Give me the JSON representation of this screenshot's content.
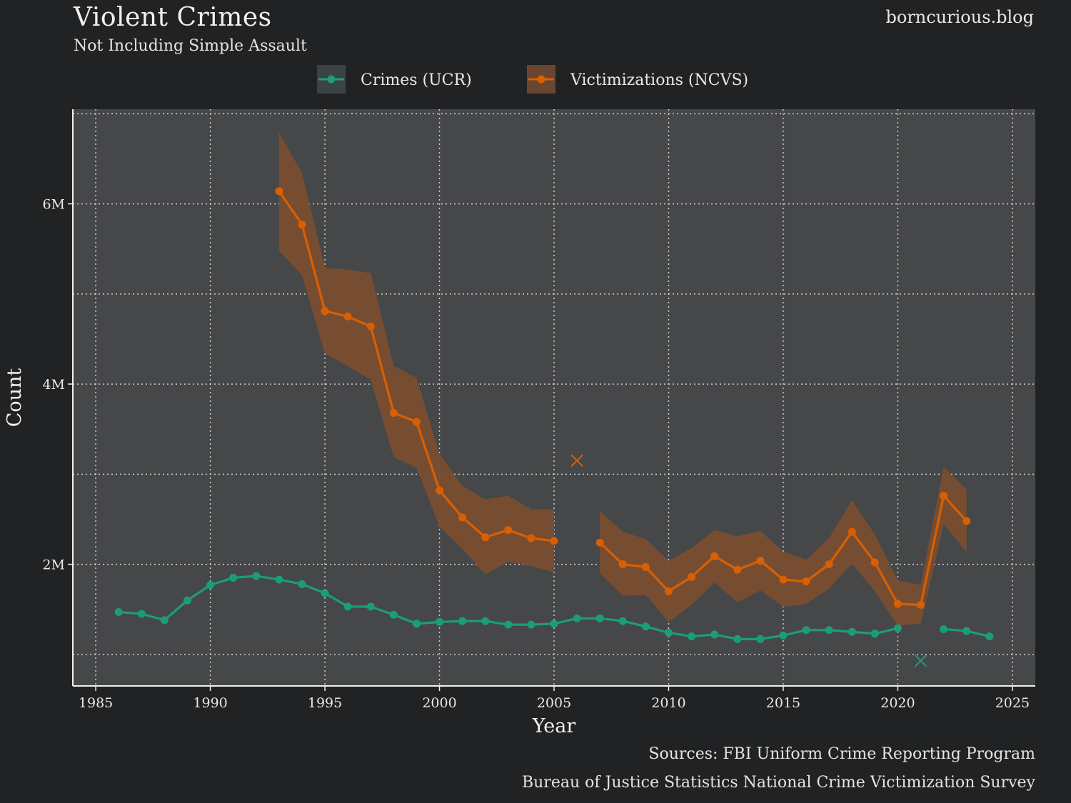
{
  "header": {
    "title": "Violent Crimes",
    "subtitle": "Not Including Simple Assault",
    "site": "borncurious.blog"
  },
  "footer": {
    "source_line1": "Sources: FBI Uniform Crime Reporting Program",
    "source_line2": "Bureau of Justice Statistics National Crime Victimization Survey"
  },
  "colors": {
    "background": "#212224",
    "panel": "#464749",
    "ucr": "#1b9e77",
    "ncvs": "#d95f02",
    "ncvs_band": "#7a4e32"
  },
  "chart_data": {
    "type": "line",
    "xlabel": "Year",
    "ylabel": "Count",
    "xlim": [
      1984,
      2026
    ],
    "ylim": [
      650000,
      7050000
    ],
    "x_ticks": [
      1985,
      1990,
      1995,
      2000,
      2005,
      2010,
      2015,
      2020,
      2025
    ],
    "y_ticks": [
      2000000,
      4000000,
      6000000
    ],
    "y_tick_labels": [
      "2M",
      "4M",
      "6M"
    ],
    "y_minor_grid": [
      1000000,
      3000000,
      5000000,
      7000000
    ],
    "grid": true,
    "legend_position": "top",
    "series": [
      {
        "name": "Crimes (UCR)",
        "color": "#1b9e77",
        "points": [
          [
            1986,
            1470000
          ],
          [
            1987,
            1450000
          ],
          [
            1988,
            1380000
          ],
          [
            1989,
            1600000
          ],
          [
            1990,
            1770000
          ],
          [
            1991,
            1850000
          ],
          [
            1992,
            1870000
          ],
          [
            1993,
            1830000
          ],
          [
            1994,
            1780000
          ],
          [
            1995,
            1680000
          ],
          [
            1996,
            1530000
          ],
          [
            1997,
            1530000
          ],
          [
            1998,
            1440000
          ],
          [
            1999,
            1340000
          ],
          [
            2000,
            1360000
          ],
          [
            2001,
            1370000
          ],
          [
            2002,
            1370000
          ],
          [
            2003,
            1330000
          ],
          [
            2004,
            1330000
          ],
          [
            2005,
            1340000
          ],
          [
            2006,
            1400000
          ],
          [
            2007,
            1400000
          ],
          [
            2008,
            1370000
          ],
          [
            2009,
            1310000
          ],
          [
            2010,
            1240000
          ],
          [
            2011,
            1200000
          ],
          [
            2012,
            1220000
          ],
          [
            2013,
            1170000
          ],
          [
            2014,
            1170000
          ],
          [
            2015,
            1210000
          ],
          [
            2016,
            1270000
          ],
          [
            2017,
            1270000
          ],
          [
            2018,
            1250000
          ],
          [
            2019,
            1230000
          ],
          [
            2020,
            1290000
          ],
          null,
          [
            2022,
            1280000
          ],
          [
            2023,
            1260000
          ],
          [
            2024,
            1200000
          ]
        ],
        "excluded_point": [
          2021,
          930000
        ]
      },
      {
        "name": "Victimizations (NCVS)",
        "color": "#d95f02",
        "points": [
          [
            1993,
            6140000
          ],
          [
            1994,
            5770000
          ],
          [
            1995,
            4810000
          ],
          [
            1996,
            4750000
          ],
          [
            1997,
            4640000
          ],
          [
            1998,
            3680000
          ],
          [
            1999,
            3580000
          ],
          [
            2000,
            2820000
          ],
          [
            2001,
            2520000
          ],
          [
            2002,
            2300000
          ],
          [
            2003,
            2380000
          ],
          [
            2004,
            2290000
          ],
          [
            2005,
            2260000
          ],
          null,
          [
            2007,
            2240000
          ],
          [
            2008,
            2000000
          ],
          [
            2009,
            1970000
          ],
          [
            2010,
            1700000
          ],
          [
            2011,
            1860000
          ],
          [
            2012,
            2090000
          ],
          [
            2013,
            1940000
          ],
          [
            2014,
            2040000
          ],
          [
            2015,
            1830000
          ],
          [
            2016,
            1810000
          ],
          [
            2017,
            2000000
          ],
          [
            2018,
            2360000
          ],
          [
            2019,
            2020000
          ],
          [
            2020,
            1560000
          ],
          [
            2021,
            1550000
          ],
          [
            2022,
            2760000
          ],
          [
            2023,
            2480000
          ]
        ],
        "excluded_point": [
          2006,
          3150000
        ],
        "confidence_band": [
          [
            1993,
            5480000,
            6790000
          ],
          [
            1994,
            5210000,
            6340000
          ],
          [
            1995,
            4340000,
            5290000
          ],
          [
            1996,
            4200000,
            5270000
          ],
          [
            1997,
            4050000,
            5230000
          ],
          [
            1998,
            3190000,
            4200000
          ],
          [
            1999,
            3070000,
            4070000
          ],
          [
            2000,
            2420000,
            3220000
          ],
          [
            2001,
            2170000,
            2870000
          ],
          [
            2002,
            1890000,
            2720000
          ],
          [
            2003,
            2030000,
            2760000
          ],
          [
            2004,
            1980000,
            2610000
          ],
          [
            2005,
            1910000,
            2610000
          ],
          null,
          [
            2007,
            1900000,
            2590000
          ],
          [
            2008,
            1650000,
            2360000
          ],
          [
            2009,
            1660000,
            2280000
          ],
          [
            2010,
            1360000,
            2040000
          ],
          [
            2011,
            1550000,
            2180000
          ],
          [
            2012,
            1800000,
            2380000
          ],
          [
            2013,
            1580000,
            2310000
          ],
          [
            2014,
            1710000,
            2370000
          ],
          [
            2015,
            1530000,
            2140000
          ],
          [
            2016,
            1560000,
            2050000
          ],
          [
            2017,
            1730000,
            2290000
          ],
          [
            2018,
            2010000,
            2710000
          ],
          [
            2019,
            1700000,
            2330000
          ],
          [
            2020,
            1320000,
            1820000
          ],
          [
            2021,
            1340000,
            1770000
          ],
          [
            2022,
            2440000,
            3080000
          ],
          [
            2023,
            2140000,
            2830000
          ]
        ]
      }
    ]
  }
}
